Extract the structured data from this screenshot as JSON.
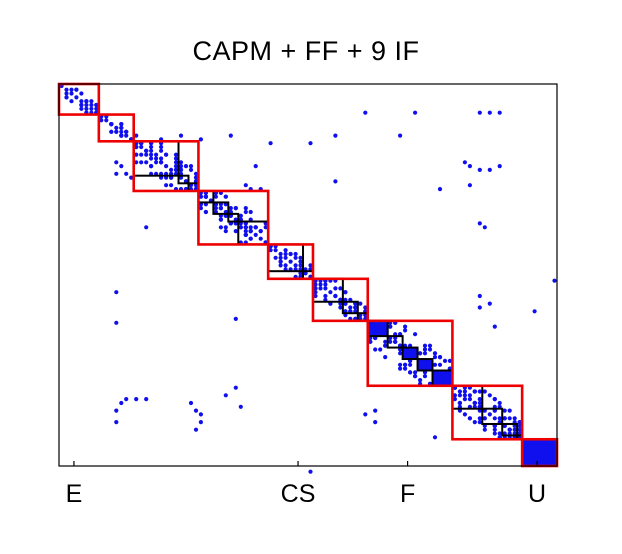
{
  "chart_data": {
    "type": "heatmap",
    "title": "CAPM + FF + 9 IF",
    "xlabel": "",
    "ylabel": "",
    "matrix_size": 100,
    "x_tick_labels": [
      {
        "label": "E",
        "index": 3
      },
      {
        "label": "CS",
        "index": 48
      },
      {
        "label": "F",
        "index": 70
      },
      {
        "label": "U",
        "index": 96
      }
    ],
    "colors": {
      "points": "#1010ee",
      "outer_blocks": "#ee0000",
      "inner_blocks": "#000000",
      "axes": "#000000"
    },
    "outer_blocks": [
      {
        "start": 0,
        "end": 8
      },
      {
        "start": 8,
        "end": 15
      },
      {
        "start": 15,
        "end": 28
      },
      {
        "start": 28,
        "end": 42
      },
      {
        "start": 42,
        "end": 51
      },
      {
        "start": 51,
        "end": 62
      },
      {
        "start": 62,
        "end": 79
      },
      {
        "start": 79,
        "end": 93
      },
      {
        "start": 93,
        "end": 100
      }
    ],
    "inner_blocks": [
      {
        "start": 15,
        "end": 24
      },
      {
        "start": 24,
        "end": 26
      },
      {
        "start": 26,
        "end": 28
      },
      {
        "start": 28,
        "end": 31
      },
      {
        "start": 31,
        "end": 34
      },
      {
        "start": 34,
        "end": 36
      },
      {
        "start": 36,
        "end": 42
      },
      {
        "start": 42,
        "end": 49
      },
      {
        "start": 49,
        "end": 51
      },
      {
        "start": 51,
        "end": 57
      },
      {
        "start": 57,
        "end": 60
      },
      {
        "start": 60,
        "end": 62
      },
      {
        "start": 62,
        "end": 66
      },
      {
        "start": 66,
        "end": 69
      },
      {
        "start": 69,
        "end": 72
      },
      {
        "start": 72,
        "end": 75
      },
      {
        "start": 75,
        "end": 79
      },
      {
        "start": 79,
        "end": 85
      },
      {
        "start": 85,
        "end": 89
      },
      {
        "start": 89,
        "end": 92
      },
      {
        "start": 92,
        "end": 93
      }
    ],
    "dense_blocks": [
      {
        "start": 62,
        "end": 66
      },
      {
        "start": 69,
        "end": 72
      },
      {
        "start": 72,
        "end": 75
      },
      {
        "start": 75,
        "end": 79
      },
      {
        "start": 93,
        "end": 100
      }
    ],
    "scattered_points": [
      [
        61,
        7
      ],
      [
        71,
        7
      ],
      [
        84,
        7
      ],
      [
        86,
        7
      ],
      [
        88,
        7
      ],
      [
        15,
        13
      ],
      [
        20,
        14
      ],
      [
        24,
        13
      ],
      [
        28,
        14
      ],
      [
        34,
        13
      ],
      [
        42,
        15
      ],
      [
        50,
        15
      ],
      [
        55,
        13
      ],
      [
        68,
        13
      ],
      [
        11,
        20
      ],
      [
        12,
        21
      ],
      [
        11,
        23
      ],
      [
        13,
        23
      ],
      [
        14,
        24
      ],
      [
        24,
        23
      ],
      [
        25,
        21
      ],
      [
        39,
        21
      ],
      [
        81,
        20
      ],
      [
        82,
        21
      ],
      [
        84,
        22
      ],
      [
        86,
        22
      ],
      [
        88,
        21
      ],
      [
        37,
        26
      ],
      [
        38,
        27
      ],
      [
        40,
        27
      ],
      [
        55,
        25
      ],
      [
        76,
        27
      ],
      [
        82,
        26
      ],
      [
        17,
        37
      ],
      [
        34,
        36
      ],
      [
        84,
        36
      ],
      [
        85,
        37
      ],
      [
        99,
        51
      ],
      [
        11,
        54
      ],
      [
        11,
        62
      ],
      [
        35,
        61
      ],
      [
        84,
        55
      ],
      [
        86,
        57
      ],
      [
        84,
        58
      ],
      [
        95,
        59
      ],
      [
        87,
        63
      ],
      [
        12,
        83
      ],
      [
        13,
        82
      ],
      [
        15,
        82
      ],
      [
        17,
        82
      ],
      [
        11,
        85
      ],
      [
        11,
        88
      ],
      [
        26,
        83
      ],
      [
        27,
        85
      ],
      [
        28,
        86
      ],
      [
        28,
        88
      ],
      [
        27,
        90
      ],
      [
        33,
        81
      ],
      [
        35,
        79
      ],
      [
        36,
        84
      ],
      [
        61,
        86
      ],
      [
        63,
        85
      ],
      [
        63,
        88
      ],
      [
        84,
        85
      ],
      [
        88,
        87
      ],
      [
        75,
        92
      ],
      [
        50,
        101
      ]
    ]
  }
}
